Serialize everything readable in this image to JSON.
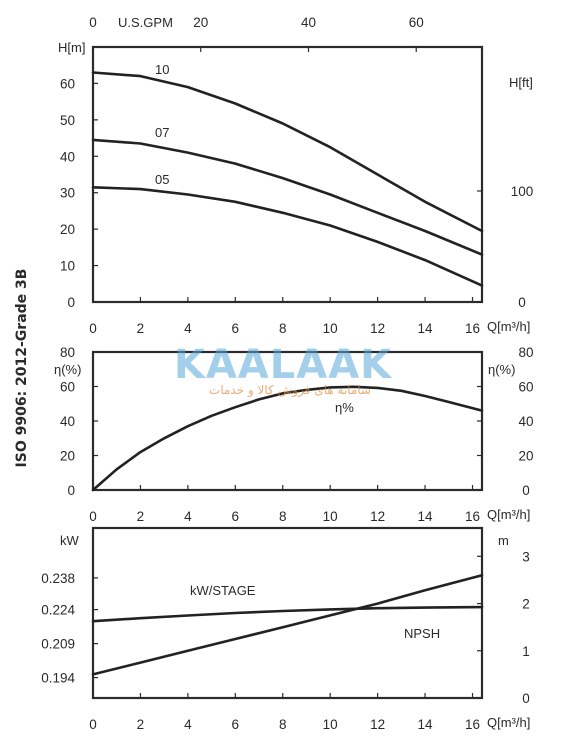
{
  "standard_label": "ISO 9906: 2012-Grade 3B",
  "watermark": {
    "brand": "KAALAAK",
    "tagline": "سامانه های فروش کالا و خدمات"
  },
  "chart_data": [
    {
      "type": "line",
      "title": "",
      "xlabel": "Q[m³/h]",
      "ylabel": "H[m]",
      "ylabel_right": "H[ft]",
      "xlabel_top": "U.S.GPM",
      "xlim": [
        0,
        16.4
      ],
      "ylim": [
        0,
        70
      ],
      "x_ticks": [
        0,
        2,
        4,
        6,
        8,
        10,
        12,
        14,
        16
      ],
      "y_ticks": [
        0,
        10,
        20,
        30,
        40,
        50,
        60
      ],
      "top_ticks": [
        0,
        20,
        40,
        60
      ],
      "right_ticks": [
        0,
        100
      ],
      "right_axis_unit": "ft",
      "grid": false,
      "series": [
        {
          "name": "10",
          "x": [
            0,
            2,
            4,
            6,
            8,
            10,
            12,
            14,
            16.4
          ],
          "y": [
            63,
            62,
            59,
            54.5,
            49,
            42.5,
            35,
            27.5,
            19.5
          ]
        },
        {
          "name": "07",
          "x": [
            0,
            2,
            4,
            6,
            8,
            10,
            12,
            14,
            16.4
          ],
          "y": [
            44.5,
            43.5,
            41,
            38,
            34,
            29.5,
            24.5,
            19.5,
            13
          ]
        },
        {
          "name": "05",
          "x": [
            0,
            2,
            4,
            6,
            8,
            10,
            12,
            14,
            16.4
          ],
          "y": [
            31.5,
            31,
            29.5,
            27.5,
            24.5,
            21,
            16.5,
            11.5,
            4.5
          ]
        }
      ]
    },
    {
      "type": "line",
      "title": "",
      "xlabel": "Q[m³/h]",
      "ylabel": "η(%)",
      "ylabel_right": "η(%)",
      "xlim": [
        0,
        16.4
      ],
      "ylim": [
        0,
        80
      ],
      "x_ticks": [
        0,
        2,
        4,
        6,
        8,
        10,
        12,
        14,
        16
      ],
      "y_ticks": [
        0,
        20,
        40,
        60,
        80
      ],
      "grid": false,
      "series": [
        {
          "name": "η%",
          "x": [
            0,
            1,
            2,
            3,
            4,
            5,
            6,
            7,
            8,
            9,
            10,
            11,
            12,
            13,
            14,
            15,
            16.4
          ],
          "y": [
            0,
            12,
            22,
            30,
            37,
            43,
            48,
            52.5,
            56,
            58,
            59.5,
            59.8,
            59.2,
            57.5,
            54.5,
            51,
            46
          ]
        }
      ]
    },
    {
      "type": "line",
      "title": "",
      "xlabel": "Q[m³/h]",
      "ylabel": "kW",
      "ylabel_right": "m",
      "xlim": [
        0,
        16.4
      ],
      "ylim": [
        0.185,
        0.26
      ],
      "x_ticks": [
        0,
        2,
        4,
        6,
        8,
        10,
        12,
        14,
        16
      ],
      "y_ticks": [
        0.194,
        0.209,
        0.224,
        0.238
      ],
      "right_ylim": [
        0,
        3.6
      ],
      "right_ticks": [
        0,
        1,
        2,
        3
      ],
      "grid": false,
      "series": [
        {
          "name": "kW/STAGE",
          "axis": "left",
          "x": [
            0,
            2,
            4,
            6,
            8,
            10,
            12,
            14,
            16.4
          ],
          "y": [
            0.2189,
            0.2202,
            0.2214,
            0.2225,
            0.2234,
            0.2241,
            0.2246,
            0.2249,
            0.2251
          ]
        },
        {
          "name": "NPSH",
          "axis": "right",
          "x": [
            0,
            2,
            4,
            6,
            8,
            10,
            12,
            14,
            16.4
          ],
          "y": [
            0.5,
            0.75,
            1.0,
            1.25,
            1.5,
            1.75,
            2.0,
            2.28,
            2.6
          ]
        }
      ]
    }
  ]
}
